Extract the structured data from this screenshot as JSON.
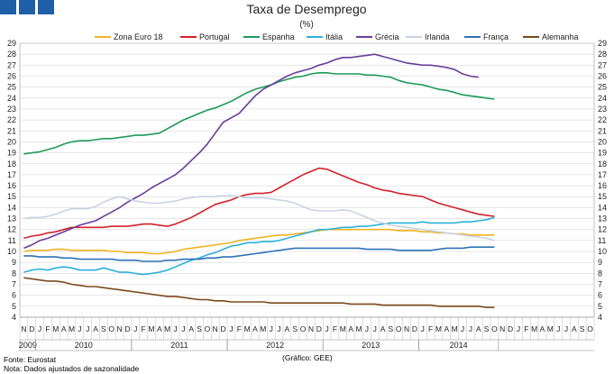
{
  "chart_data": {
    "type": "line",
    "title": "Taxa de Desemprego",
    "subtitle": "(%)",
    "ylim": [
      4,
      29
    ],
    "yticks": [
      4,
      5,
      6,
      7,
      8,
      9,
      10,
      11,
      12,
      13,
      14,
      15,
      16,
      17,
      18,
      19,
      20,
      21,
      22,
      23,
      24,
      25,
      26,
      27,
      28,
      29
    ],
    "month_labels": [
      "N",
      "D",
      "J",
      "F",
      "M",
      "A",
      "M",
      "J",
      "J",
      "A",
      "S",
      "O",
      "N",
      "D",
      "J",
      "F",
      "M",
      "A",
      "M",
      "J",
      "J",
      "A",
      "S",
      "O",
      "N",
      "D",
      "J",
      "F",
      "M",
      "A",
      "M",
      "J",
      "J",
      "A",
      "S",
      "O",
      "N",
      "D",
      "J",
      "F",
      "M",
      "A",
      "M",
      "J",
      "J",
      "A",
      "S",
      "O",
      "N",
      "D",
      "J",
      "F",
      "M",
      "A",
      "M",
      "J",
      "J",
      "A",
      "S",
      "O",
      "N",
      "D",
      "J",
      "F",
      "M",
      "A",
      "M",
      "J",
      "J",
      "A",
      "S",
      "O"
    ],
    "year_labels": [
      {
        "label": "2009",
        "start": 0,
        "end": 1
      },
      {
        "label": "2010",
        "start": 2,
        "end": 13
      },
      {
        "label": "2011",
        "start": 14,
        "end": 25
      },
      {
        "label": "2012",
        "start": 26,
        "end": 37
      },
      {
        "label": "2013",
        "start": 38,
        "end": 49
      },
      {
        "label": "2014",
        "start": 50,
        "end": 59
      }
    ],
    "series": [
      {
        "name": "Zona Euro 18",
        "color": "#f0b323",
        "values": [
          10.0,
          10.1,
          10.1,
          10.1,
          10.2,
          10.2,
          10.1,
          10.1,
          10.1,
          10.1,
          10.1,
          10.0,
          10.0,
          9.9,
          9.9,
          9.9,
          9.8,
          9.8,
          9.9,
          10.0,
          10.2,
          10.3,
          10.4,
          10.5,
          10.6,
          10.7,
          10.8,
          11.0,
          11.1,
          11.2,
          11.3,
          11.4,
          11.5,
          11.5,
          11.6,
          11.7,
          11.8,
          11.9,
          12.0,
          12.0,
          12.0,
          12.0,
          12.0,
          12.0,
          12.0,
          12.0,
          12.0,
          11.9,
          11.9,
          11.9,
          11.8,
          11.8,
          11.7,
          11.7,
          11.6,
          11.6,
          11.5,
          11.5,
          11.5,
          11.5
        ]
      },
      {
        "name": "Portugal",
        "color": "#d2232a",
        "values": [
          11.2,
          11.4,
          11.5,
          11.7,
          11.8,
          12.0,
          12.2,
          12.2,
          12.2,
          12.2,
          12.2,
          12.3,
          12.3,
          12.3,
          12.4,
          12.5,
          12.5,
          12.4,
          12.3,
          12.5,
          12.8,
          13.1,
          13.5,
          13.9,
          14.3,
          14.5,
          14.7,
          15.0,
          15.2,
          15.3,
          15.3,
          15.4,
          15.8,
          16.2,
          16.6,
          17.0,
          17.3,
          17.6,
          17.5,
          17.2,
          16.9,
          16.6,
          16.3,
          16.1,
          15.8,
          15.6,
          15.5,
          15.3,
          15.2,
          15.1,
          15.0,
          14.7,
          14.4,
          14.2,
          14.0,
          13.8,
          13.6,
          13.4,
          13.3,
          13.2
        ]
      },
      {
        "name": "Espanha",
        "color": "#1e9a5a",
        "values": [
          18.9,
          19.0,
          19.1,
          19.3,
          19.5,
          19.8,
          20.0,
          20.1,
          20.1,
          20.2,
          20.3,
          20.3,
          20.4,
          20.5,
          20.6,
          20.6,
          20.7,
          20.8,
          21.2,
          21.6,
          22.0,
          22.3,
          22.6,
          22.9,
          23.1,
          23.4,
          23.7,
          24.1,
          24.5,
          24.8,
          25.0,
          25.2,
          25.5,
          25.7,
          25.9,
          26.0,
          26.2,
          26.3,
          26.3,
          26.2,
          26.2,
          26.2,
          26.2,
          26.1,
          26.1,
          26.0,
          25.9,
          25.6,
          25.4,
          25.3,
          25.2,
          25.0,
          24.8,
          24.7,
          24.5,
          24.3,
          24.2,
          24.1,
          24.0,
          23.9
        ]
      },
      {
        "name": "Itália",
        "color": "#2fb1d9",
        "values": [
          8.1,
          8.3,
          8.4,
          8.3,
          8.5,
          8.6,
          8.5,
          8.3,
          8.3,
          8.3,
          8.5,
          8.3,
          8.1,
          8.1,
          8.0,
          7.9,
          8.0,
          8.1,
          8.3,
          8.6,
          8.9,
          9.2,
          9.4,
          9.7,
          9.9,
          10.2,
          10.5,
          10.6,
          10.8,
          10.8,
          10.9,
          10.9,
          11.0,
          11.2,
          11.4,
          11.6,
          11.8,
          12.0,
          12.0,
          12.1,
          12.2,
          12.2,
          12.3,
          12.3,
          12.4,
          12.5,
          12.6,
          12.6,
          12.6,
          12.6,
          12.7,
          12.6,
          12.6,
          12.6,
          12.6,
          12.7,
          12.7,
          12.8,
          12.9,
          13.1
        ]
      },
      {
        "name": "Grécia",
        "color": "#6a3d9a",
        "values": [
          10.3,
          10.6,
          11.0,
          11.2,
          11.5,
          11.8,
          12.1,
          12.4,
          12.6,
          12.8,
          13.2,
          13.6,
          14.0,
          14.5,
          14.9,
          15.3,
          15.8,
          16.2,
          16.6,
          17.0,
          17.6,
          18.3,
          19.0,
          19.8,
          20.8,
          21.8,
          22.2,
          22.6,
          23.4,
          24.2,
          24.8,
          25.2,
          25.6,
          26.0,
          26.3,
          26.5,
          26.7,
          27.0,
          27.2,
          27.5,
          27.7,
          27.7,
          27.8,
          27.9,
          28.0,
          27.8,
          27.6,
          27.4,
          27.2,
          27.1,
          27.0,
          27.0,
          26.9,
          26.8,
          26.6,
          26.2,
          26.0,
          25.9
        ]
      },
      {
        "name": "Irlanda",
        "color": "#c9d3e2",
        "values": [
          13.0,
          13.1,
          13.1,
          13.2,
          13.4,
          13.7,
          13.9,
          13.9,
          13.9,
          14.1,
          14.5,
          14.8,
          15.0,
          14.8,
          14.6,
          14.5,
          14.4,
          14.4,
          14.5,
          14.6,
          14.8,
          14.9,
          15.0,
          15.0,
          15.0,
          15.1,
          15.1,
          15.0,
          14.9,
          14.9,
          14.9,
          14.8,
          14.7,
          14.6,
          14.4,
          14.1,
          13.8,
          13.7,
          13.7,
          13.7,
          13.8,
          13.7,
          13.4,
          13.1,
          12.8,
          12.6,
          12.4,
          12.3,
          12.2,
          12.1,
          12.0,
          11.9,
          11.8,
          11.7,
          11.6,
          11.5,
          11.4,
          11.3,
          11.2,
          11.0
        ]
      },
      {
        "name": "França",
        "color": "#2e72b7",
        "values": [
          9.6,
          9.6,
          9.5,
          9.5,
          9.5,
          9.4,
          9.4,
          9.3,
          9.3,
          9.3,
          9.3,
          9.3,
          9.2,
          9.2,
          9.2,
          9.1,
          9.1,
          9.1,
          9.2,
          9.2,
          9.3,
          9.3,
          9.3,
          9.4,
          9.4,
          9.5,
          9.5,
          9.6,
          9.7,
          9.8,
          9.9,
          10.0,
          10.1,
          10.2,
          10.3,
          10.3,
          10.3,
          10.3,
          10.3,
          10.3,
          10.3,
          10.3,
          10.3,
          10.2,
          10.2,
          10.2,
          10.2,
          10.1,
          10.1,
          10.1,
          10.1,
          10.1,
          10.2,
          10.3,
          10.3,
          10.3,
          10.4,
          10.4,
          10.4,
          10.4
        ]
      },
      {
        "name": "Alemanha",
        "color": "#7a4a1c",
        "values": [
          7.6,
          7.5,
          7.4,
          7.3,
          7.3,
          7.2,
          7.0,
          6.9,
          6.8,
          6.8,
          6.7,
          6.6,
          6.5,
          6.4,
          6.3,
          6.2,
          6.1,
          6.0,
          5.9,
          5.9,
          5.8,
          5.7,
          5.6,
          5.6,
          5.5,
          5.5,
          5.4,
          5.4,
          5.4,
          5.4,
          5.4,
          5.3,
          5.3,
          5.3,
          5.3,
          5.3,
          5.3,
          5.3,
          5.3,
          5.3,
          5.3,
          5.2,
          5.2,
          5.2,
          5.2,
          5.1,
          5.1,
          5.1,
          5.1,
          5.1,
          5.1,
          5.1,
          5.0,
          5.0,
          5.0,
          5.0,
          5.0,
          5.0,
          4.9,
          4.9
        ]
      }
    ]
  },
  "footer": {
    "source": "Fonte: Eurostat",
    "note": "Nota: Dados ajustados de sazonalidade",
    "credit": "(Gráfico: GEE)"
  },
  "colors": {
    "brand_squares": "#1f5fa8"
  }
}
